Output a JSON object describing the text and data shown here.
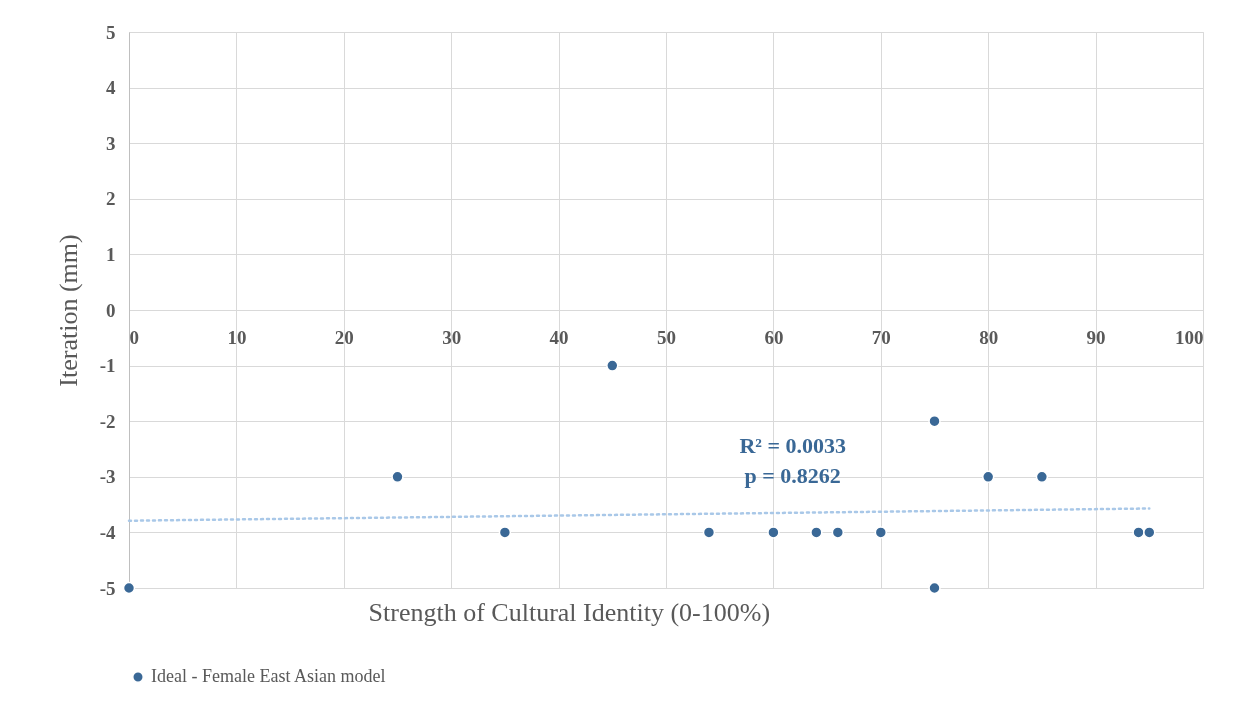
{
  "chart_data": {
    "type": "scatter",
    "xlabel": "Strength of Cultural Identity (0-100%)",
    "ylabel": "Iteration (mm)",
    "xlim": [
      0,
      100
    ],
    "xticks": [
      0,
      10,
      20,
      30,
      40,
      50,
      60,
      70,
      80,
      90,
      100
    ],
    "ylim": [
      -5,
      5
    ],
    "yticks": [
      -5,
      -4,
      -3,
      -2,
      -1,
      0,
      1,
      2,
      3,
      4,
      5
    ],
    "grid": true,
    "legend": "bottom",
    "marker": "circle",
    "series": [
      {
        "name": "Ideal - Female East Asian model",
        "color": "#3a6896",
        "x": [
          0,
          25,
          35,
          45,
          54,
          60,
          64,
          66,
          70,
          75,
          75,
          80,
          85,
          94,
          95
        ],
        "values": [
          -5,
          -3,
          -4,
          -1,
          -4,
          -4,
          -4,
          -4,
          -4,
          -2,
          -5,
          -3,
          -3,
          -4,
          -4
        ]
      },
      {
        "type": "line",
        "color": "#a9c8e8",
        "line_style": "dotted",
        "marker": "none",
        "x": [
          0,
          95
        ],
        "values": [
          -3.79,
          -3.57
        ]
      }
    ],
    "annotations": [
      "R² = 0.0033",
      "p = 0.8262"
    ]
  }
}
